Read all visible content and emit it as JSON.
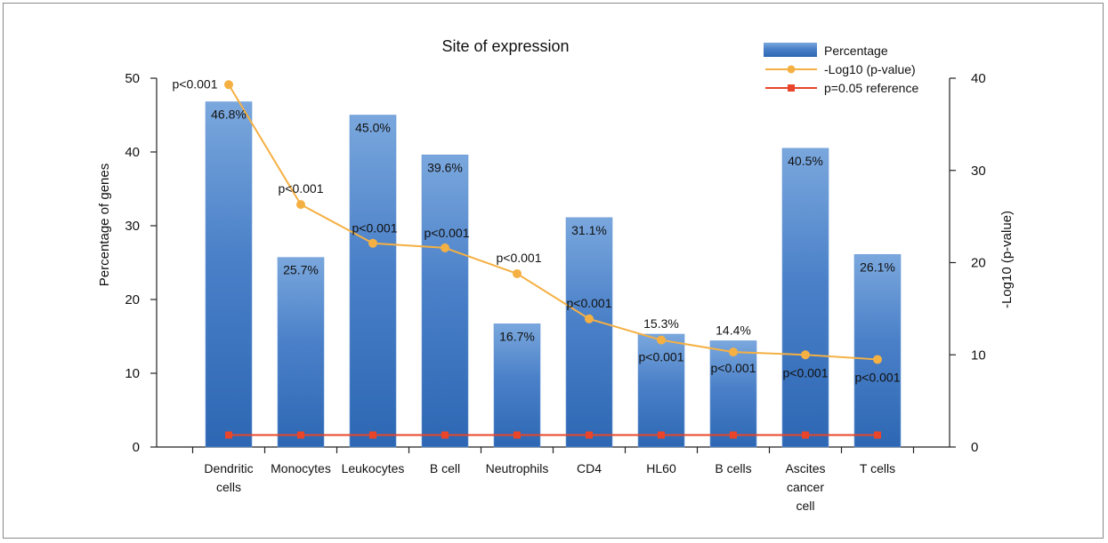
{
  "chart_data": {
    "type": "bar",
    "title": "Site of expression",
    "categories": [
      [
        "Dendritic",
        "cells"
      ],
      [
        "Monocytes"
      ],
      [
        "Leukocytes"
      ],
      [
        "B cell"
      ],
      [
        "Neutrophils"
      ],
      [
        "CD4"
      ],
      [
        "HL60"
      ],
      [
        "B cells"
      ],
      [
        "Ascites",
        "cancer",
        "cell"
      ],
      [
        "T cells"
      ]
    ],
    "ylabel": "Percentage of genes",
    "y2label": "-Log10 (p-value)",
    "ylim": [
      0,
      50
    ],
    "y2lim": [
      0,
      40
    ],
    "yticks": [
      0,
      10,
      20,
      30,
      40,
      50
    ],
    "y2ticks": [
      0,
      10,
      20,
      30,
      40
    ],
    "series": [
      {
        "name": "Percentage",
        "type": "bar",
        "axis": "left",
        "color": "#4a80c8",
        "values": [
          46.8,
          25.7,
          45.0,
          39.6,
          16.7,
          31.1,
          15.3,
          14.4,
          40.5,
          26.1
        ],
        "labels": [
          "46.8%",
          "25.7%",
          "45.0%",
          "39.6%",
          "16.7%",
          "31.1%",
          "15.3%",
          "14.4%",
          "40.5%",
          "26.1%"
        ]
      },
      {
        "name": "-Log10 (p-value)",
        "type": "line",
        "axis": "right",
        "color": "#f5b043",
        "values": [
          39.3,
          26.3,
          22.1,
          21.6,
          18.8,
          13.9,
          11.6,
          10.3,
          10.0,
          9.5
        ],
        "labels": [
          "p<0.001",
          "p<0.001",
          "p<0.001",
          "p<0.001",
          "p<0.001",
          "p<0.001",
          "p<0.001",
          "p<0.001",
          "p<0.001",
          "p<0.001"
        ]
      },
      {
        "name": "p=0.05 reference",
        "type": "line",
        "axis": "right",
        "color": "#e8452a",
        "values": [
          1.3,
          1.3,
          1.3,
          1.3,
          1.3,
          1.3,
          1.3,
          1.3,
          1.3,
          1.3
        ]
      }
    ],
    "legend_position": "top-right",
    "grid": false
  }
}
